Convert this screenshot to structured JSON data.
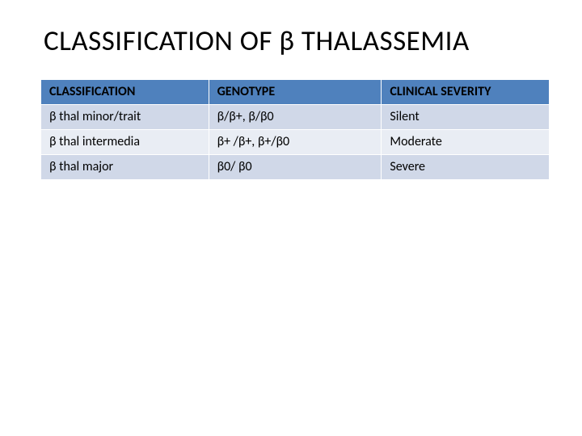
{
  "title": "CLASSIFICATION OF β THALASSEMIA",
  "table": {
    "type": "table",
    "header_bg": "#4f81bd",
    "row_alt_bg": "#d0d8e8",
    "row_plain_bg": "#e9edf4",
    "border_color": "#ffffff",
    "text_color": "#000000",
    "font_size_pt": 12,
    "title_fontsize_pt": 26,
    "columns": [
      {
        "label": "CLASSIFICATION",
        "width_pct": 33
      },
      {
        "label": "GENOTYPE",
        "width_pct": 34
      },
      {
        "label": "CLINICAL SEVERITY",
        "width_pct": 33
      }
    ],
    "rows": [
      {
        "cells": [
          "β thal minor/trait",
          "β/β+, β/β0",
          "Silent"
        ],
        "style": "alt"
      },
      {
        "cells": [
          "β thal intermedia",
          "β+ /β+, β+/β0",
          "Moderate"
        ],
        "style": "plain"
      },
      {
        "cells": [
          "β thal major",
          "β0/ β0",
          "Severe"
        ],
        "style": "alt"
      }
    ]
  }
}
